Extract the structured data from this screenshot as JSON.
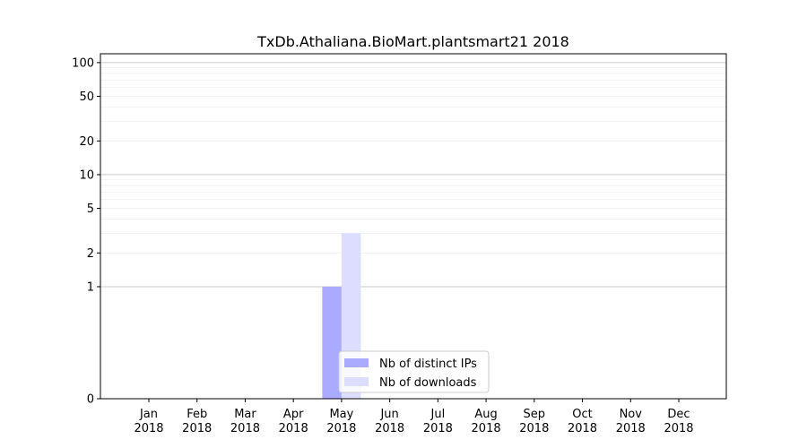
{
  "chart_data": {
    "type": "bar",
    "title": "TxDb.Athaliana.BioMart.plantsmart21 2018",
    "xlabel": "",
    "ylabel": "",
    "y_scale": "symlog",
    "ylim": [
      0,
      120
    ],
    "y_ticks": [
      {
        "value": 0,
        "label": "0"
      },
      {
        "value": 1,
        "label": "1"
      },
      {
        "value": 2,
        "label": "2"
      },
      {
        "value": 5,
        "label": "5"
      },
      {
        "value": 10,
        "label": "10"
      },
      {
        "value": 20,
        "label": "20"
      },
      {
        "value": 50,
        "label": "50"
      },
      {
        "value": 100,
        "label": "100"
      }
    ],
    "categories": [
      {
        "month": "Jan",
        "year": "2018"
      },
      {
        "month": "Feb",
        "year": "2018"
      },
      {
        "month": "Mar",
        "year": "2018"
      },
      {
        "month": "Apr",
        "year": "2018"
      },
      {
        "month": "May",
        "year": "2018"
      },
      {
        "month": "Jun",
        "year": "2018"
      },
      {
        "month": "Jul",
        "year": "2018"
      },
      {
        "month": "Aug",
        "year": "2018"
      },
      {
        "month": "Sep",
        "year": "2018"
      },
      {
        "month": "Oct",
        "year": "2018"
      },
      {
        "month": "Nov",
        "year": "2018"
      },
      {
        "month": "Dec",
        "year": "2018"
      }
    ],
    "series": [
      {
        "name": "Nb of distinct IPs",
        "color": "#aaaaff",
        "values": [
          0,
          0,
          0,
          0,
          1,
          0,
          0,
          0,
          0,
          0,
          0,
          0
        ]
      },
      {
        "name": "Nb of downloads",
        "color": "#ddddff",
        "values": [
          0,
          0,
          0,
          0,
          3,
          0,
          0,
          0,
          0,
          0,
          0,
          0
        ]
      }
    ],
    "grid": true,
    "legend_position": "bottom-center"
  }
}
